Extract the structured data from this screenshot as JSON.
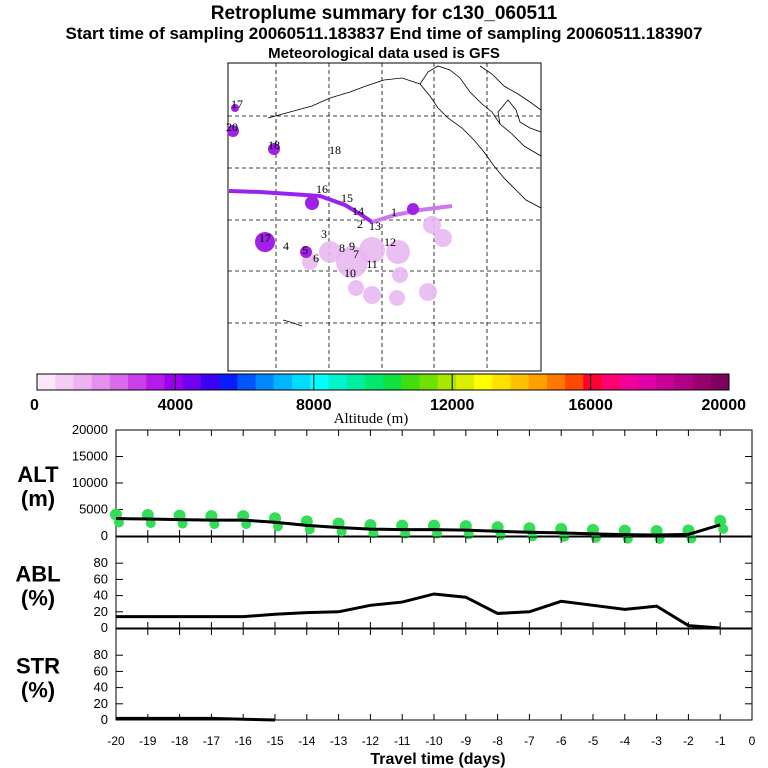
{
  "titles": {
    "line1": "Retroplume summary for c130_060511",
    "line2": "Start time of sampling 20060511.183837     End time of sampling 20060511.183907",
    "line3": "Meteorological data used is GFS"
  },
  "colors": {
    "altitude_marker": "#33dd55",
    "map_trajectory_start": "#9922ee",
    "map_trajectory_end": "#cc77ee",
    "map_pastel": "#e8b8f0"
  },
  "colorbar": {
    "ticks": [
      "0",
      "4000",
      "8000",
      "12000",
      "16000",
      "20000"
    ],
    "label": "Altitude (m)",
    "colors": [
      "#fbe6fb",
      "#f4cdf6",
      "#eeb2f2",
      "#e590ee",
      "#d86aeb",
      "#c840ea",
      "#b61aeb",
      "#9a00f0",
      "#7000f0",
      "#3a00f0",
      "#0a1df8",
      "#0055ff",
      "#0088ff",
      "#00b6ff",
      "#00dcff",
      "#00ffff",
      "#00f5cc",
      "#00eea0",
      "#00e870",
      "#10e040",
      "#40dd10",
      "#70e000",
      "#a8e800",
      "#d8f000",
      "#ffff00",
      "#ffe000",
      "#ffc000",
      "#ffa000",
      "#ff7800",
      "#ff4800",
      "#ff0030",
      "#ff0070",
      "#f00098",
      "#e000a8",
      "#c80098",
      "#b00088",
      "#980070",
      "#800060"
    ]
  },
  "map_labels": [
    "17",
    "20",
    "18",
    "18",
    "17",
    "16",
    "15",
    "14",
    "13",
    "12",
    "11",
    "10",
    "9",
    "8",
    "7",
    "6",
    "5",
    "4",
    "3",
    "2",
    "1"
  ],
  "chart_data": [
    {
      "type": "line",
      "title": "ALT",
      "ylabel": "ALT (m)",
      "ylabel_lines": [
        "ALT",
        "(m)"
      ],
      "ylim": [
        0,
        20000
      ],
      "yticks": [
        "20000",
        "15000",
        "10000",
        "5000",
        "0"
      ],
      "x": [
        -20,
        -19,
        -18,
        -17,
        -16,
        -15,
        -14,
        -13,
        -12,
        -11,
        -10,
        -9,
        -8,
        -7,
        -6,
        -5,
        -4,
        -3,
        -2,
        -1
      ],
      "values": [
        3300,
        3200,
        3100,
        3000,
        3000,
        2600,
        2000,
        1600,
        1300,
        1200,
        1200,
        1100,
        900,
        700,
        600,
        400,
        250,
        200,
        300,
        2100
      ]
    },
    {
      "type": "line",
      "title": "ABL",
      "ylabel": "ABL (%)",
      "ylabel_lines": [
        "ABL",
        "(%)"
      ],
      "ylim": [
        0,
        100
      ],
      "yticks": [
        "80",
        "60",
        "40",
        "20",
        "0"
      ],
      "x": [
        -20,
        -19,
        -18,
        -17,
        -16,
        -15,
        -14,
        -13,
        -12,
        -11,
        -10,
        -9,
        -8,
        -7,
        -6,
        -5,
        -4,
        -3,
        -2,
        -1
      ],
      "values": [
        14,
        14,
        14,
        14,
        14,
        17,
        19,
        20,
        28,
        32,
        42,
        38,
        18,
        20,
        33,
        28,
        23,
        27,
        3,
        0
      ]
    },
    {
      "type": "line",
      "title": "STR",
      "ylabel": "STR (%)",
      "ylabel_lines": [
        "STR",
        "(%)"
      ],
      "ylim": [
        0,
        100
      ],
      "yticks": [
        "80",
        "60",
        "40",
        "20",
        "0"
      ],
      "x": [
        -20,
        -19,
        -18,
        -17,
        -16,
        -15
      ],
      "values": [
        2,
        2,
        2,
        2,
        1,
        0
      ]
    }
  ],
  "xaxis": {
    "ticks": [
      "-20",
      "-19",
      "-18",
      "-17",
      "-16",
      "-15",
      "-14",
      "-13",
      "-12",
      "-11",
      "-10",
      "-9",
      "-8",
      "-7",
      "-6",
      "-5",
      "-4",
      "-3",
      "-2",
      "-1",
      "0"
    ],
    "xlabel": "Travel time (days)",
    "xlim": [
      -20,
      0
    ]
  }
}
